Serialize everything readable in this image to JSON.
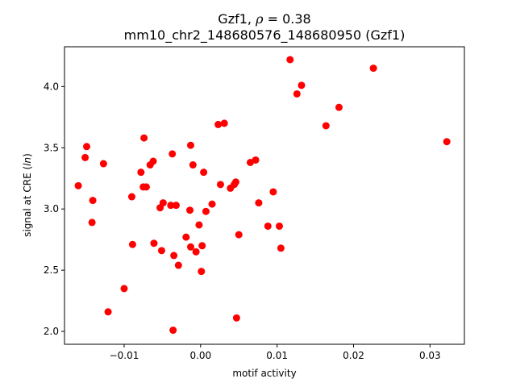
{
  "chart_data": {
    "type": "scatter",
    "title_gene": "Gzf1",
    "title_rho": "0.38",
    "subtitle": "mm10_chr2_148680576_148680950 (Gzf1)",
    "xlabel": "motif activity",
    "ylabel_prefix": "signal at CRE (",
    "ylabel_var": "ln",
    "ylabel_suffix": ")",
    "xlim": [
      -0.0178,
      0.0345
    ],
    "ylim": [
      1.895,
      4.325
    ],
    "xticks": [
      {
        "value": -0.01,
        "label": "−0.01"
      },
      {
        "value": 0.0,
        "label": "0.00"
      },
      {
        "value": 0.01,
        "label": "0.01"
      },
      {
        "value": 0.02,
        "label": "0.02"
      },
      {
        "value": 0.03,
        "label": "0.03"
      }
    ],
    "yticks": [
      {
        "value": 2.0,
        "label": "2.0"
      },
      {
        "value": 2.5,
        "label": "2.5"
      },
      {
        "value": 3.0,
        "label": "3.0"
      },
      {
        "value": 3.5,
        "label": "3.5"
      },
      {
        "value": 4.0,
        "label": "4.0"
      }
    ],
    "grid": false,
    "marker_color": "#ff0000",
    "points": [
      {
        "x": 0.0117,
        "y": 4.22
      },
      {
        "x": 0.0226,
        "y": 4.15
      },
      {
        "x": 0.0132,
        "y": 4.01
      },
      {
        "x": 0.0126,
        "y": 3.94
      },
      {
        "x": 0.0181,
        "y": 3.83
      },
      {
        "x": 0.0023,
        "y": 3.69
      },
      {
        "x": 0.0031,
        "y": 3.7
      },
      {
        "x": 0.0164,
        "y": 3.68
      },
      {
        "x": -0.0074,
        "y": 3.58
      },
      {
        "x": 0.0322,
        "y": 3.55
      },
      {
        "x": -0.0149,
        "y": 3.51
      },
      {
        "x": -0.0013,
        "y": 3.52
      },
      {
        "x": -0.0151,
        "y": 3.42
      },
      {
        "x": -0.0037,
        "y": 3.45
      },
      {
        "x": 0.0072,
        "y": 3.4
      },
      {
        "x": -0.0062,
        "y": 3.39
      },
      {
        "x": 0.0065,
        "y": 3.38
      },
      {
        "x": -0.0127,
        "y": 3.37
      },
      {
        "x": -0.0066,
        "y": 3.36
      },
      {
        "x": -0.001,
        "y": 3.36
      },
      {
        "x": -0.0078,
        "y": 3.3
      },
      {
        "x": 0.0004,
        "y": 3.3
      },
      {
        "x": 0.0046,
        "y": 3.22
      },
      {
        "x": 0.0044,
        "y": 3.2
      },
      {
        "x": 0.0026,
        "y": 3.2
      },
      {
        "x": -0.016,
        "y": 3.19
      },
      {
        "x": -0.0075,
        "y": 3.18
      },
      {
        "x": -0.0071,
        "y": 3.18
      },
      {
        "x": 0.0039,
        "y": 3.17
      },
      {
        "x": 0.0095,
        "y": 3.14
      },
      {
        "x": -0.009,
        "y": 3.1
      },
      {
        "x": -0.0141,
        "y": 3.07
      },
      {
        "x": 0.0076,
        "y": 3.05
      },
      {
        "x": -0.0049,
        "y": 3.05
      },
      {
        "x": 0.0015,
        "y": 3.04
      },
      {
        "x": -0.0039,
        "y": 3.03
      },
      {
        "x": -0.0032,
        "y": 3.03
      },
      {
        "x": -0.0053,
        "y": 3.01
      },
      {
        "x": -0.0014,
        "y": 2.99
      },
      {
        "x": 0.0007,
        "y": 2.98
      },
      {
        "x": -0.0142,
        "y": 2.89
      },
      {
        "x": -0.0002,
        "y": 2.87
      },
      {
        "x": 0.0088,
        "y": 2.86
      },
      {
        "x": 0.0103,
        "y": 2.86
      },
      {
        "x": 0.005,
        "y": 2.79
      },
      {
        "x": -0.0019,
        "y": 2.77
      },
      {
        "x": -0.0061,
        "y": 2.72
      },
      {
        "x": -0.0089,
        "y": 2.71
      },
      {
        "x": 0.0002,
        "y": 2.7
      },
      {
        "x": -0.0013,
        "y": 2.69
      },
      {
        "x": 0.0105,
        "y": 2.68
      },
      {
        "x": -0.0051,
        "y": 2.66
      },
      {
        "x": -0.0006,
        "y": 2.65
      },
      {
        "x": -0.0035,
        "y": 2.62
      },
      {
        "x": -0.0029,
        "y": 2.54
      },
      {
        "x": 0.0001,
        "y": 2.49
      },
      {
        "x": -0.01,
        "y": 2.35
      },
      {
        "x": -0.0121,
        "y": 2.16
      },
      {
        "x": 0.0047,
        "y": 2.11
      },
      {
        "x": -0.0036,
        "y": 2.01
      }
    ]
  }
}
